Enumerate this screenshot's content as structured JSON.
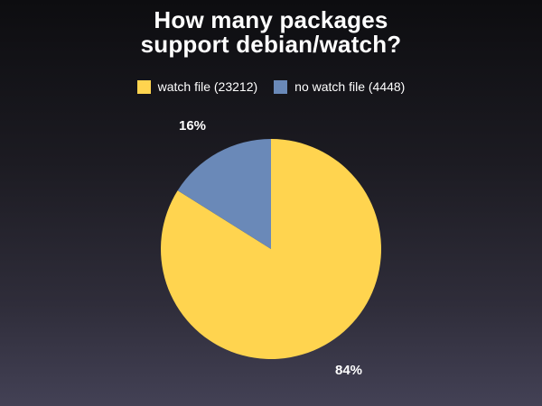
{
  "chart_data": {
    "type": "pie",
    "title_lines": [
      "How many packages",
      "support debian/watch?"
    ],
    "legend_position": "top",
    "slices": [
      {
        "label": "watch file (23212)",
        "value": 23212,
        "percent_label": "84%",
        "color": "#ffd44f"
      },
      {
        "label": "no watch file (4448)",
        "value": 4448,
        "percent_label": "16%",
        "color": "#6a89b8"
      }
    ]
  }
}
